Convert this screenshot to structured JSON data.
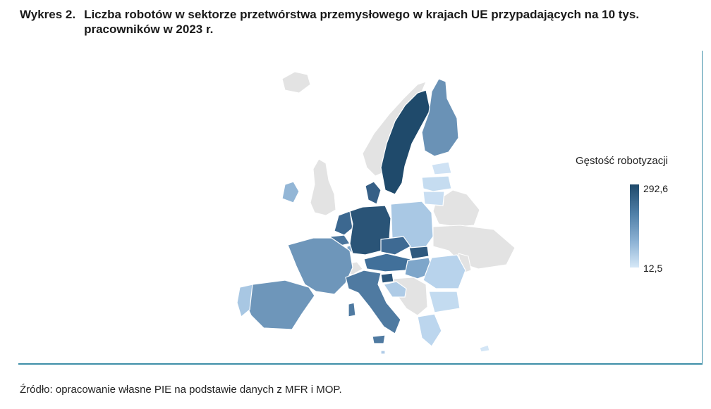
{
  "figure": {
    "number": "Wykres 2.",
    "title": "Liczba robotów w sektorze przetwórstwa przemysłowego w krajach UE przypadających na 10 tys. pracowników w 2023 r."
  },
  "legend": {
    "title": "Gęstość robotyzacji",
    "max_label": "292,6",
    "min_label": "12,5",
    "max_value": 292.6,
    "min_value": 12.5,
    "color_high": "#1f4a6b",
    "color_low": "#d6e8f7"
  },
  "colors": {
    "non_eu": "#e3e3e3",
    "border": "#3e8fa8"
  },
  "source": "Źródło: opracowanie własne PIE na podstawie danych z MFR i MOP."
}
